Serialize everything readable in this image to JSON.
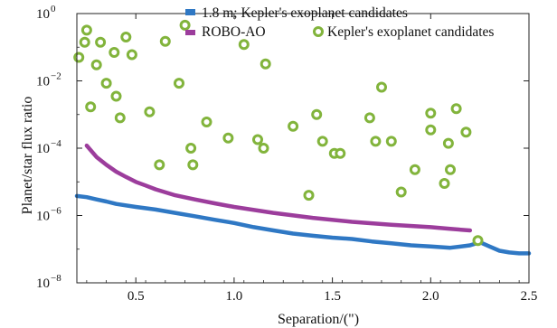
{
  "chart_data": {
    "type": "scatter",
    "xlabel": "Separation/(\")",
    "ylabel": "Planet/star flux ratio",
    "xlim": [
      0.2,
      2.5
    ],
    "ylim_log10": [
      -8,
      0
    ],
    "y_scale": "log",
    "x_ticks": [
      {
        "value": 0.5,
        "label": "0.5"
      },
      {
        "value": 1.0,
        "label": "1.0"
      },
      {
        "value": 1.5,
        "label": "1.5"
      },
      {
        "value": 2.0,
        "label": "2.0"
      },
      {
        "value": 2.5,
        "label": "2.5"
      }
    ],
    "y_ticks": [
      {
        "exp": 0,
        "base": "10",
        "sup": "0"
      },
      {
        "exp": -2,
        "base": "10",
        "sup": "−2"
      },
      {
        "exp": -4,
        "base": "10",
        "sup": "−4"
      },
      {
        "exp": -6,
        "base": "10",
        "sup": "−6"
      },
      {
        "exp": -8,
        "base": "10",
        "sup": "−8"
      }
    ],
    "legend": [
      {
        "label": "1.8 m; Kepler's exoplanet candidates",
        "color": "#2f78c4",
        "kind": "line"
      },
      {
        "label": "ROBO-AO",
        "color": "#9c3d9c",
        "kind": "line"
      },
      {
        "label": "Kepler's exoplanet candidates",
        "color": "#82b43c",
        "kind": "marker"
      }
    ],
    "series": [
      {
        "name": "1.8 m; Kepler's exoplanet candidates",
        "kind": "line",
        "color": "#2f78c4",
        "x": [
          0.2,
          0.25,
          0.3,
          0.35,
          0.4,
          0.5,
          0.6,
          0.7,
          0.8,
          0.9,
          1.0,
          1.1,
          1.2,
          1.3,
          1.4,
          1.5,
          1.6,
          1.7,
          1.8,
          1.9,
          2.0,
          2.1,
          2.2,
          2.25,
          2.3,
          2.35,
          2.4,
          2.45,
          2.5
        ],
        "y": [
          3.8e-06,
          3.5e-06,
          3e-06,
          2.6e-06,
          2.2e-06,
          1.8e-06,
          1.5e-06,
          1.2e-06,
          9.5e-07,
          7.5e-07,
          6e-07,
          4.5e-07,
          3.6e-07,
          2.9e-07,
          2.5e-07,
          2.2e-07,
          2e-07,
          1.7e-07,
          1.5e-07,
          1.3e-07,
          1.2e-07,
          1.1e-07,
          1.3e-07,
          1.6e-07,
          1.2e-07,
          9e-08,
          8e-08,
          7.5e-08,
          7.5e-08
        ]
      },
      {
        "name": "ROBO-AO",
        "kind": "line",
        "color": "#9c3d9c",
        "x": [
          0.25,
          0.3,
          0.35,
          0.4,
          0.45,
          0.5,
          0.55,
          0.6,
          0.7,
          0.8,
          0.9,
          1.0,
          1.2,
          1.4,
          1.6,
          1.8,
          2.0,
          2.1,
          2.2
        ],
        "y": [
          0.00012,
          5.5e-05,
          3.2e-05,
          2e-05,
          1.4e-05,
          1e-05,
          7.8e-06,
          6e-06,
          4e-06,
          3e-06,
          2.3e-06,
          1.8e-06,
          1.2e-06,
          8.5e-07,
          6.5e-07,
          5.3e-07,
          4.5e-07,
          4e-07,
          3.6e-07
        ]
      },
      {
        "name": "Kepler's exoplanet candidates",
        "kind": "scatter",
        "color": "#82b43c",
        "points": [
          [
            0.21,
            0.05
          ],
          [
            0.24,
            0.14
          ],
          [
            0.25,
            0.32
          ],
          [
            0.27,
            0.0017
          ],
          [
            0.3,
            0.03
          ],
          [
            0.32,
            0.14
          ],
          [
            0.35,
            0.0085
          ],
          [
            0.39,
            0.07
          ],
          [
            0.4,
            0.0035
          ],
          [
            0.42,
            0.0008
          ],
          [
            0.45,
            0.2
          ],
          [
            0.48,
            0.06
          ],
          [
            0.57,
            0.0012
          ],
          [
            0.62,
            3.2e-05
          ],
          [
            0.65,
            0.15
          ],
          [
            0.72,
            0.0085
          ],
          [
            0.75,
            0.45
          ],
          [
            0.78,
            0.0001
          ],
          [
            0.79,
            3.2e-05
          ],
          [
            0.86,
            0.0006
          ],
          [
            0.97,
            0.0002
          ],
          [
            1.05,
            0.12
          ],
          [
            1.12,
            0.00018
          ],
          [
            1.15,
            0.0001
          ],
          [
            1.16,
            0.032
          ],
          [
            1.3,
            0.00045
          ],
          [
            1.38,
            4e-06
          ],
          [
            1.42,
            0.001
          ],
          [
            1.45,
            0.00016
          ],
          [
            1.51,
            7e-05
          ],
          [
            1.54,
            7e-05
          ],
          [
            1.69,
            0.0008
          ],
          [
            1.72,
            0.00016
          ],
          [
            1.75,
            0.0065
          ],
          [
            1.8,
            0.00016
          ],
          [
            1.85,
            5e-06
          ],
          [
            1.92,
            2.3e-05
          ],
          [
            2.0,
            0.0011
          ],
          [
            2.0,
            0.00035
          ],
          [
            2.07,
            9e-06
          ],
          [
            2.09,
            0.00014
          ],
          [
            2.1,
            2.3e-05
          ],
          [
            2.13,
            0.0015
          ],
          [
            2.18,
            0.0003
          ],
          [
            2.24,
            1.8e-07
          ]
        ]
      }
    ]
  }
}
